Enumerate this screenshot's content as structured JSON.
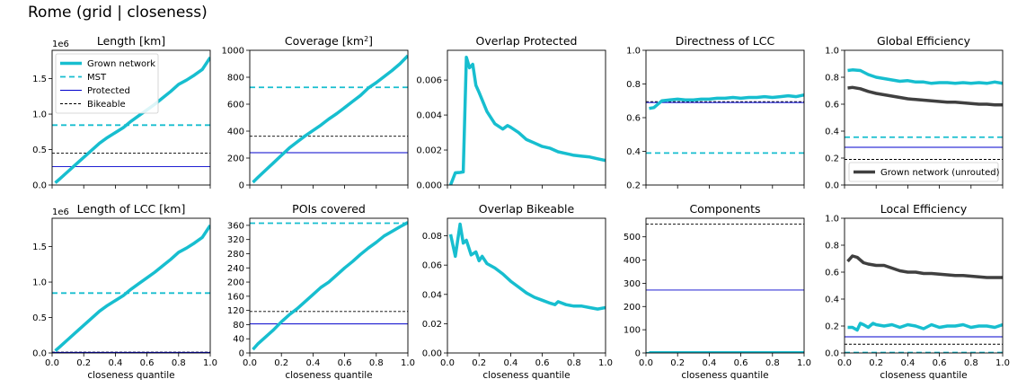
{
  "figure": {
    "title": "Rome (grid | closeness)"
  },
  "colors": {
    "grown": "#17becf",
    "unrouted": "#404040",
    "mst": "#17becf",
    "protected": "#0000cc",
    "bikeable": "#000000"
  },
  "chart_data": [
    {
      "type": "line",
      "title": "Length [km]",
      "xlabel": "",
      "ylabel": "",
      "exponent": "1e6",
      "xlim": [
        0,
        1
      ],
      "ylim": [
        0,
        1.9
      ],
      "xticks": [
        0,
        0.2,
        0.4,
        0.6,
        0.8,
        1.0
      ],
      "xticklabels": false,
      "yticks": [
        0.0,
        0.5,
        1.0,
        1.5
      ],
      "yticklabels": [
        "0.0",
        "0.5",
        "1.0",
        "1.5"
      ],
      "legend": {
        "position": "top-left",
        "entries": [
          {
            "name": "Grown network",
            "style": "grown"
          },
          {
            "name": "MST",
            "style": "mst"
          },
          {
            "name": "Protected",
            "style": "protected"
          },
          {
            "name": "Bikeable",
            "style": "bikeable"
          }
        ]
      },
      "series": [
        {
          "name": "Grown network",
          "style": "grown",
          "x": [
            0.02,
            0.05,
            0.1,
            0.15,
            0.2,
            0.25,
            0.3,
            0.35,
            0.4,
            0.45,
            0.5,
            0.55,
            0.6,
            0.65,
            0.7,
            0.75,
            0.8,
            0.85,
            0.9,
            0.95,
            1.0
          ],
          "y": [
            0.03,
            0.09,
            0.19,
            0.29,
            0.39,
            0.49,
            0.59,
            0.67,
            0.74,
            0.81,
            0.9,
            0.98,
            1.06,
            1.14,
            1.23,
            1.32,
            1.42,
            1.48,
            1.55,
            1.63,
            1.8
          ]
        }
      ],
      "hlines": [
        {
          "y": 0.845,
          "style": "mst"
        },
        {
          "y": 0.45,
          "style": "bikeable"
        },
        {
          "y": 0.26,
          "style": "protected"
        }
      ]
    },
    {
      "type": "line",
      "title": "Coverage [km",
      "title_sup": "2",
      "title_end": "]",
      "xlabel": "",
      "ylabel": "",
      "xlim": [
        0,
        1
      ],
      "ylim": [
        0,
        1000
      ],
      "xticks": [
        0,
        0.2,
        0.4,
        0.6,
        0.8,
        1.0
      ],
      "xticklabels": false,
      "yticks": [
        0,
        200,
        400,
        600,
        800,
        1000
      ],
      "yticklabels": [
        "0",
        "200",
        "400",
        "600",
        "800",
        "1000"
      ],
      "series": [
        {
          "name": "Grown network",
          "style": "grown",
          "x": [
            0.02,
            0.05,
            0.1,
            0.15,
            0.2,
            0.25,
            0.3,
            0.35,
            0.4,
            0.45,
            0.5,
            0.55,
            0.6,
            0.65,
            0.7,
            0.75,
            0.8,
            0.85,
            0.9,
            0.95,
            1.0
          ],
          "y": [
            20,
            55,
            110,
            165,
            220,
            275,
            320,
            365,
            405,
            445,
            490,
            530,
            575,
            620,
            665,
            720,
            760,
            805,
            850,
            900,
            960
          ]
        }
      ],
      "hlines": [
        {
          "y": 725,
          "style": "mst"
        },
        {
          "y": 362,
          "style": "bikeable"
        },
        {
          "y": 240,
          "style": "protected"
        }
      ]
    },
    {
      "type": "line",
      "title": "Overlap Protected",
      "xlabel": "",
      "ylabel": "",
      "xlim": [
        0,
        1
      ],
      "ylim": [
        0,
        0.0077
      ],
      "xticks": [
        0,
        0.2,
        0.4,
        0.6,
        0.8,
        1.0
      ],
      "xticklabels": false,
      "yticks": [
        0,
        0.002,
        0.004,
        0.006
      ],
      "yticklabels": [
        "0.000",
        "0.002",
        "0.004",
        "0.006"
      ],
      "series": [
        {
          "name": "Grown network",
          "style": "grown",
          "x": [
            0.02,
            0.05,
            0.08,
            0.1,
            0.12,
            0.14,
            0.16,
            0.18,
            0.2,
            0.25,
            0.3,
            0.35,
            0.38,
            0.4,
            0.45,
            0.5,
            0.55,
            0.6,
            0.65,
            0.7,
            0.75,
            0.8,
            0.85,
            0.9,
            0.95,
            1.0
          ],
          "y": [
            0.0,
            0.0007,
            0.00072,
            0.00075,
            0.0073,
            0.0067,
            0.0069,
            0.0057,
            0.0053,
            0.0042,
            0.0035,
            0.0032,
            0.0034,
            0.0033,
            0.003,
            0.0026,
            0.0024,
            0.0022,
            0.0021,
            0.0019,
            0.0018,
            0.0017,
            0.00165,
            0.0016,
            0.0015,
            0.0014
          ]
        }
      ],
      "hlines": []
    },
    {
      "type": "line",
      "title": "Directness of LCC",
      "xlabel": "",
      "ylabel": "",
      "xlim": [
        0,
        1
      ],
      "ylim": [
        0.2,
        1.0
      ],
      "xticks": [
        0,
        0.2,
        0.4,
        0.6,
        0.8,
        1.0
      ],
      "xticklabels": false,
      "yticks": [
        0.2,
        0.4,
        0.6,
        0.8,
        1.0
      ],
      "yticklabels": [
        "0.2",
        "0.4",
        "0.6",
        "0.8",
        "1.0"
      ],
      "series": [
        {
          "name": "Grown network",
          "style": "grown",
          "x": [
            0.02,
            0.05,
            0.1,
            0.15,
            0.2,
            0.25,
            0.3,
            0.35,
            0.4,
            0.45,
            0.5,
            0.55,
            0.6,
            0.65,
            0.7,
            0.75,
            0.8,
            0.85,
            0.9,
            0.95,
            1.0
          ],
          "y": [
            0.655,
            0.66,
            0.7,
            0.705,
            0.71,
            0.705,
            0.705,
            0.71,
            0.71,
            0.715,
            0.715,
            0.72,
            0.715,
            0.72,
            0.72,
            0.725,
            0.72,
            0.725,
            0.73,
            0.725,
            0.735
          ]
        }
      ],
      "hlines": [
        {
          "y": 0.695,
          "style": "bikeable"
        },
        {
          "y": 0.69,
          "style": "protected"
        },
        {
          "y": 0.39,
          "style": "mst"
        }
      ]
    },
    {
      "type": "line",
      "title": "Global Efficiency",
      "xlabel": "",
      "ylabel": "",
      "xlim": [
        0,
        1
      ],
      "ylim": [
        0,
        1.0
      ],
      "xticks": [
        0,
        0.2,
        0.4,
        0.6,
        0.8,
        1.0
      ],
      "xticklabels": false,
      "yticks": [
        0.0,
        0.2,
        0.4,
        0.6,
        0.8,
        1.0
      ],
      "yticklabels": [
        "0.0",
        "0.2",
        "0.4",
        "0.6",
        "0.8",
        "1.0"
      ],
      "legend": {
        "position": "bottom",
        "entries": [
          {
            "name": "Grown network (unrouted)",
            "style": "unrouted"
          }
        ]
      },
      "series": [
        {
          "name": "Grown network",
          "style": "grown",
          "x": [
            0.02,
            0.05,
            0.1,
            0.15,
            0.2,
            0.25,
            0.3,
            0.35,
            0.4,
            0.45,
            0.5,
            0.55,
            0.6,
            0.65,
            0.7,
            0.75,
            0.8,
            0.85,
            0.9,
            0.95,
            1.0
          ],
          "y": [
            0.85,
            0.855,
            0.85,
            0.82,
            0.8,
            0.79,
            0.78,
            0.77,
            0.775,
            0.765,
            0.765,
            0.755,
            0.76,
            0.76,
            0.755,
            0.76,
            0.755,
            0.76,
            0.755,
            0.765,
            0.755
          ]
        },
        {
          "name": "Grown network (unrouted)",
          "style": "unrouted",
          "x": [
            0.02,
            0.05,
            0.1,
            0.15,
            0.2,
            0.25,
            0.3,
            0.35,
            0.4,
            0.45,
            0.5,
            0.55,
            0.6,
            0.65,
            0.7,
            0.75,
            0.8,
            0.85,
            0.9,
            0.95,
            1.0
          ],
          "y": [
            0.72,
            0.725,
            0.715,
            0.695,
            0.68,
            0.67,
            0.66,
            0.65,
            0.64,
            0.635,
            0.63,
            0.625,
            0.62,
            0.615,
            0.615,
            0.61,
            0.605,
            0.6,
            0.6,
            0.595,
            0.595
          ]
        }
      ],
      "hlines": [
        {
          "y": 0.355,
          "style": "mst"
        },
        {
          "y": 0.28,
          "style": "protected"
        },
        {
          "y": 0.19,
          "style": "bikeable"
        }
      ]
    },
    {
      "type": "line",
      "title": "Length of LCC [km]",
      "xlabel": "closeness quantile",
      "ylabel": "",
      "exponent": "1e6",
      "xlim": [
        0,
        1
      ],
      "ylim": [
        0,
        1.9
      ],
      "xticks": [
        0,
        0.2,
        0.4,
        0.6,
        0.8,
        1.0
      ],
      "xticklabels": [
        "0.0",
        "0.2",
        "0.4",
        "0.6",
        "0.8",
        "1.0"
      ],
      "yticks": [
        0.0,
        0.5,
        1.0,
        1.5
      ],
      "yticklabels": [
        "0.0",
        "0.5",
        "1.0",
        "1.5"
      ],
      "series": [
        {
          "name": "Grown network",
          "style": "grown",
          "x": [
            0.02,
            0.05,
            0.1,
            0.15,
            0.2,
            0.25,
            0.3,
            0.35,
            0.4,
            0.45,
            0.5,
            0.55,
            0.6,
            0.65,
            0.7,
            0.75,
            0.8,
            0.85,
            0.9,
            0.95,
            1.0
          ],
          "y": [
            0.03,
            0.09,
            0.19,
            0.29,
            0.39,
            0.49,
            0.59,
            0.67,
            0.74,
            0.81,
            0.9,
            0.98,
            1.06,
            1.14,
            1.23,
            1.32,
            1.42,
            1.48,
            1.55,
            1.63,
            1.8
          ]
        }
      ],
      "hlines": [
        {
          "y": 0.845,
          "style": "mst"
        },
        {
          "y": 0.012,
          "style": "bikeable"
        },
        {
          "y": 0.008,
          "style": "protected"
        }
      ]
    },
    {
      "type": "line",
      "title": "POIs covered",
      "xlabel": "closeness quantile",
      "ylabel": "",
      "xlim": [
        0,
        1
      ],
      "ylim": [
        0,
        380
      ],
      "xticks": [
        0,
        0.2,
        0.4,
        0.6,
        0.8,
        1.0
      ],
      "xticklabels": [
        "0.0",
        "0.2",
        "0.4",
        "0.6",
        "0.8",
        "1.0"
      ],
      "yticks": [
        0,
        40,
        80,
        120,
        160,
        200,
        240,
        280,
        320,
        360
      ],
      "yticklabels": [
        "0",
        "40",
        "80",
        "120",
        "160",
        "200",
        "240",
        "280",
        "320",
        "360"
      ],
      "series": [
        {
          "name": "Grown network",
          "style": "grown",
          "x": [
            0.02,
            0.05,
            0.1,
            0.15,
            0.2,
            0.25,
            0.3,
            0.35,
            0.4,
            0.45,
            0.5,
            0.55,
            0.6,
            0.65,
            0.7,
            0.75,
            0.8,
            0.85,
            0.9,
            0.95,
            1.0
          ],
          "y": [
            10,
            25,
            45,
            65,
            88,
            108,
            125,
            145,
            165,
            185,
            200,
            220,
            240,
            258,
            278,
            296,
            312,
            330,
            343,
            356,
            368
          ]
        }
      ],
      "hlines": [
        {
          "y": 366,
          "style": "mst"
        },
        {
          "y": 117,
          "style": "bikeable"
        },
        {
          "y": 82,
          "style": "protected"
        }
      ]
    },
    {
      "type": "line",
      "title": "Overlap Bikeable",
      "xlabel": "closeness quantile",
      "ylabel": "",
      "xlim": [
        0,
        1
      ],
      "ylim": [
        0,
        0.092
      ],
      "xticks": [
        0,
        0.2,
        0.4,
        0.6,
        0.8,
        1.0
      ],
      "xticklabels": [
        "0.0",
        "0.2",
        "0.4",
        "0.6",
        "0.8",
        "1.0"
      ],
      "yticks": [
        0,
        0.02,
        0.04,
        0.06,
        0.08
      ],
      "yticklabels": [
        "0.00",
        "0.02",
        "0.04",
        "0.06",
        "0.08"
      ],
      "series": [
        {
          "name": "Grown network",
          "style": "grown",
          "x": [
            0.02,
            0.05,
            0.08,
            0.1,
            0.12,
            0.15,
            0.18,
            0.2,
            0.22,
            0.25,
            0.3,
            0.35,
            0.4,
            0.45,
            0.5,
            0.55,
            0.6,
            0.65,
            0.68,
            0.7,
            0.75,
            0.8,
            0.85,
            0.9,
            0.95,
            1.0
          ],
          "y": [
            0.081,
            0.066,
            0.088,
            0.075,
            0.077,
            0.067,
            0.069,
            0.063,
            0.066,
            0.061,
            0.058,
            0.054,
            0.049,
            0.045,
            0.041,
            0.038,
            0.036,
            0.034,
            0.033,
            0.035,
            0.033,
            0.032,
            0.032,
            0.031,
            0.03,
            0.031
          ]
        }
      ],
      "hlines": []
    },
    {
      "type": "line",
      "title": "Components",
      "xlabel": "closeness quantile",
      "ylabel": "",
      "xlim": [
        0,
        1
      ],
      "ylim": [
        0,
        580
      ],
      "xticks": [
        0,
        0.2,
        0.4,
        0.6,
        0.8,
        1.0
      ],
      "xticklabels": [
        "0.0",
        "0.2",
        "0.4",
        "0.6",
        "0.8",
        "1.0"
      ],
      "yticks": [
        0,
        100,
        200,
        300,
        400,
        500
      ],
      "yticklabels": [
        "0",
        "100",
        "200",
        "300",
        "400",
        "500"
      ],
      "series": [
        {
          "name": "Grown network",
          "style": "grown",
          "x": [
            0.02,
            0.2,
            0.4,
            0.6,
            0.8,
            1.0
          ],
          "y": [
            1,
            1,
            1,
            1,
            1,
            1
          ]
        }
      ],
      "hlines": [
        {
          "y": 555,
          "style": "bikeable"
        },
        {
          "y": 271,
          "style": "protected"
        },
        {
          "y": 1,
          "style": "mst"
        }
      ]
    },
    {
      "type": "line",
      "title": "Local Efficiency",
      "xlabel": "closeness quantile",
      "ylabel": "",
      "xlim": [
        0,
        1
      ],
      "ylim": [
        0,
        1.0
      ],
      "xticks": [
        0,
        0.2,
        0.4,
        0.6,
        0.8,
        1.0
      ],
      "xticklabels": [
        "0.0",
        "0.2",
        "0.4",
        "0.6",
        "0.8",
        "1.0"
      ],
      "yticks": [
        0.0,
        0.2,
        0.4,
        0.6,
        0.8,
        1.0
      ],
      "yticklabels": [
        "0.0",
        "0.2",
        "0.4",
        "0.6",
        "0.8",
        "1.0"
      ],
      "series": [
        {
          "name": "Grown network (unrouted)",
          "style": "unrouted",
          "x": [
            0.02,
            0.05,
            0.08,
            0.1,
            0.12,
            0.15,
            0.2,
            0.25,
            0.3,
            0.35,
            0.4,
            0.45,
            0.5,
            0.55,
            0.6,
            0.65,
            0.7,
            0.75,
            0.8,
            0.85,
            0.9,
            0.95,
            1.0
          ],
          "y": [
            0.68,
            0.72,
            0.71,
            0.69,
            0.67,
            0.66,
            0.65,
            0.65,
            0.63,
            0.61,
            0.6,
            0.6,
            0.59,
            0.59,
            0.585,
            0.58,
            0.575,
            0.575,
            0.57,
            0.565,
            0.56,
            0.56,
            0.56
          ]
        },
        {
          "name": "Grown network",
          "style": "grown",
          "x": [
            0.02,
            0.05,
            0.08,
            0.1,
            0.12,
            0.15,
            0.18,
            0.2,
            0.25,
            0.3,
            0.35,
            0.4,
            0.45,
            0.5,
            0.55,
            0.6,
            0.65,
            0.7,
            0.75,
            0.8,
            0.85,
            0.9,
            0.95,
            1.0
          ],
          "y": [
            0.19,
            0.19,
            0.17,
            0.22,
            0.21,
            0.19,
            0.22,
            0.21,
            0.2,
            0.21,
            0.19,
            0.21,
            0.2,
            0.18,
            0.21,
            0.19,
            0.2,
            0.2,
            0.21,
            0.19,
            0.2,
            0.2,
            0.19,
            0.21
          ]
        }
      ],
      "hlines": [
        {
          "y": 0.12,
          "style": "protected"
        },
        {
          "y": 0.065,
          "style": "bikeable"
        },
        {
          "y": 0.003,
          "style": "mst"
        }
      ]
    }
  ]
}
